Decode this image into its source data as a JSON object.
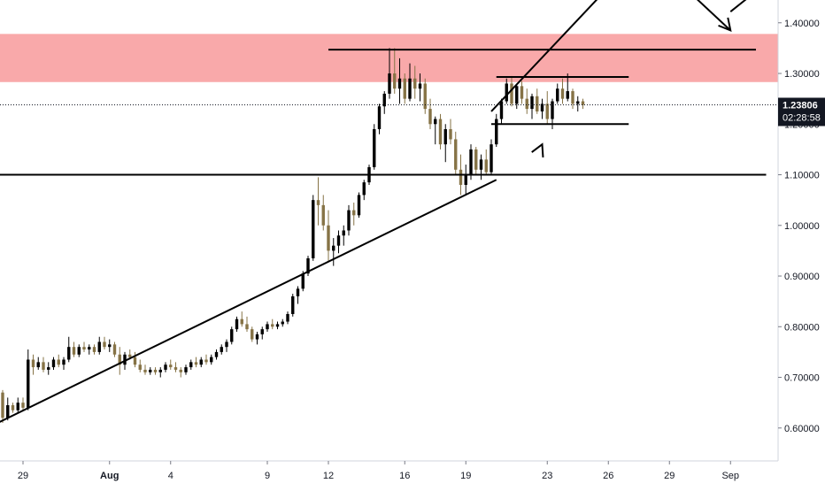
{
  "chart_data": {
    "type": "candlestick",
    "y_axis": {
      "ticks": [
        "1.40000",
        "1.30000",
        "1.20000",
        "1.10000",
        "1.00000",
        "0.90000",
        "0.80000",
        "0.70000",
        "0.60000"
      ],
      "tick_values": [
        1.4,
        1.3,
        1.2,
        1.1,
        1.0,
        0.9,
        0.8,
        0.7,
        0.6
      ],
      "ylim": [
        0.535,
        1.445
      ],
      "position": "right"
    },
    "x_axis": {
      "ticks": [
        "29",
        "Aug",
        "4",
        "9",
        "12",
        "16",
        "19",
        "23",
        "26",
        "29",
        "Sep"
      ],
      "tick_bold": [
        false,
        true,
        false,
        false,
        false,
        false,
        false,
        false,
        false,
        false,
        false
      ],
      "tick_bar_index": [
        4,
        21,
        33,
        52,
        64,
        79,
        91,
        107,
        119,
        131,
        143
      ]
    },
    "last_price": {
      "value": "1.23806",
      "numeric": 1.23806,
      "countdown": "02:28:58",
      "color": "#131722"
    },
    "colors": {
      "up": "#000000",
      "down": "#867346",
      "zone": "#f9a9aa",
      "line": "#000000"
    },
    "resistance_zone": {
      "from": 1.283,
      "to": 1.378
    },
    "horizontal_lines": [
      {
        "y": 1.1,
        "bar_from": -1,
        "bar_to": 150
      },
      {
        "y": 1.347,
        "bar_from": 64,
        "bar_to": 148
      },
      {
        "y": 1.293,
        "bar_from": 97,
        "bar_to": 123
      },
      {
        "y": 1.2,
        "bar_from": 96,
        "bar_to": 123
      }
    ],
    "trendlines": [
      {
        "from": [
          -1,
          0.61
        ],
        "to": [
          97,
          1.09
        ]
      },
      {
        "from": [
          96,
          1.225
        ],
        "to": [
          119,
          1.47
        ]
      },
      {
        "from": [
          135,
          1.46
        ],
        "to": [
          143,
          1.385
        ]
      },
      {
        "from": [
          143,
          1.422
        ],
        "to": [
          149,
          1.47
        ]
      }
    ],
    "arrowheads": [
      {
        "tip": [
          106,
          1.16
        ],
        "dir": [
          1,
          0.022
        ]
      },
      {
        "tip": [
          143,
          1.385
        ],
        "dir": [
          1,
          -0.012
        ]
      }
    ],
    "candles": [
      [
        0.67,
        0.675,
        0.61,
        0.62
      ],
      [
        0.62,
        0.66,
        0.615,
        0.645
      ],
      [
        0.645,
        0.65,
        0.63,
        0.635
      ],
      [
        0.635,
        0.66,
        0.63,
        0.65
      ],
      [
        0.65,
        0.66,
        0.635,
        0.64
      ],
      [
        0.64,
        0.755,
        0.635,
        0.735
      ],
      [
        0.735,
        0.745,
        0.705,
        0.72
      ],
      [
        0.72,
        0.74,
        0.715,
        0.73
      ],
      [
        0.73,
        0.74,
        0.71,
        0.715
      ],
      [
        0.715,
        0.73,
        0.705,
        0.72
      ],
      [
        0.72,
        0.74,
        0.715,
        0.735
      ],
      [
        0.735,
        0.745,
        0.72,
        0.725
      ],
      [
        0.725,
        0.74,
        0.715,
        0.735
      ],
      [
        0.735,
        0.78,
        0.73,
        0.76
      ],
      [
        0.76,
        0.77,
        0.74,
        0.745
      ],
      [
        0.745,
        0.765,
        0.74,
        0.76
      ],
      [
        0.76,
        0.77,
        0.75,
        0.755
      ],
      [
        0.755,
        0.765,
        0.745,
        0.76
      ],
      [
        0.76,
        0.765,
        0.745,
        0.75
      ],
      [
        0.75,
        0.78,
        0.745,
        0.77
      ],
      [
        0.77,
        0.78,
        0.755,
        0.76
      ],
      [
        0.76,
        0.775,
        0.75,
        0.765
      ],
      [
        0.765,
        0.77,
        0.74,
        0.745
      ],
      [
        0.745,
        0.76,
        0.705,
        0.725
      ],
      [
        0.725,
        0.75,
        0.715,
        0.745
      ],
      [
        0.745,
        0.755,
        0.735,
        0.74
      ],
      [
        0.74,
        0.75,
        0.72,
        0.725
      ],
      [
        0.725,
        0.735,
        0.71,
        0.715
      ],
      [
        0.715,
        0.725,
        0.705,
        0.71
      ],
      [
        0.71,
        0.72,
        0.705,
        0.715
      ],
      [
        0.715,
        0.72,
        0.705,
        0.71
      ],
      [
        0.71,
        0.72,
        0.7,
        0.715
      ],
      [
        0.715,
        0.73,
        0.71,
        0.725
      ],
      [
        0.725,
        0.735,
        0.715,
        0.72
      ],
      [
        0.72,
        0.73,
        0.71,
        0.715
      ],
      [
        0.715,
        0.72,
        0.7,
        0.71
      ],
      [
        0.71,
        0.725,
        0.705,
        0.72
      ],
      [
        0.72,
        0.735,
        0.715,
        0.73
      ],
      [
        0.73,
        0.74,
        0.72,
        0.725
      ],
      [
        0.725,
        0.74,
        0.72,
        0.735
      ],
      [
        0.735,
        0.745,
        0.725,
        0.73
      ],
      [
        0.73,
        0.745,
        0.725,
        0.74
      ],
      [
        0.74,
        0.755,
        0.735,
        0.75
      ],
      [
        0.75,
        0.765,
        0.745,
        0.76
      ],
      [
        0.76,
        0.775,
        0.75,
        0.77
      ],
      [
        0.77,
        0.8,
        0.765,
        0.795
      ],
      [
        0.795,
        0.82,
        0.79,
        0.815
      ],
      [
        0.815,
        0.83,
        0.8,
        0.805
      ],
      [
        0.805,
        0.82,
        0.79,
        0.795
      ],
      [
        0.795,
        0.8,
        0.77,
        0.775
      ],
      [
        0.775,
        0.79,
        0.765,
        0.785
      ],
      [
        0.785,
        0.8,
        0.775,
        0.795
      ],
      [
        0.795,
        0.81,
        0.79,
        0.805
      ],
      [
        0.805,
        0.815,
        0.795,
        0.8
      ],
      [
        0.8,
        0.81,
        0.795,
        0.805
      ],
      [
        0.805,
        0.815,
        0.8,
        0.81
      ],
      [
        0.81,
        0.83,
        0.805,
        0.825
      ],
      [
        0.825,
        0.865,
        0.82,
        0.86
      ],
      [
        0.86,
        0.88,
        0.845,
        0.875
      ],
      [
        0.875,
        0.91,
        0.87,
        0.905
      ],
      [
        0.905,
        0.94,
        0.9,
        0.935
      ],
      [
        0.935,
        1.06,
        0.93,
        1.05
      ],
      [
        1.05,
        1.095,
        1.0,
        1.04
      ],
      [
        1.04,
        1.06,
        0.99,
        1.0
      ],
      [
        1.0,
        1.03,
        0.93,
        0.95
      ],
      [
        0.95,
        0.975,
        0.92,
        0.96
      ],
      [
        0.96,
        0.99,
        0.945,
        0.98
      ],
      [
        0.98,
        1.0,
        0.96,
        0.99
      ],
      [
        0.99,
        1.04,
        0.98,
        1.03
      ],
      [
        1.03,
        1.045,
        1.0,
        1.02
      ],
      [
        1.02,
        1.065,
        1.015,
        1.06
      ],
      [
        1.06,
        1.09,
        1.05,
        1.085
      ],
      [
        1.085,
        1.12,
        1.08,
        1.115
      ],
      [
        1.115,
        1.2,
        1.11,
        1.19
      ],
      [
        1.19,
        1.24,
        1.18,
        1.235
      ],
      [
        1.235,
        1.265,
        1.22,
        1.26
      ],
      [
        1.26,
        1.35,
        1.25,
        1.3
      ],
      [
        1.3,
        1.35,
        1.26,
        1.27
      ],
      [
        1.27,
        1.33,
        1.24,
        1.29
      ],
      [
        1.29,
        1.3,
        1.24,
        1.25
      ],
      [
        1.25,
        1.32,
        1.245,
        1.29
      ],
      [
        1.29,
        1.315,
        1.25,
        1.27
      ],
      [
        1.27,
        1.3,
        1.245,
        1.28
      ],
      [
        1.28,
        1.29,
        1.22,
        1.23
      ],
      [
        1.23,
        1.25,
        1.19,
        1.2
      ],
      [
        1.2,
        1.215,
        1.16,
        1.21
      ],
      [
        1.21,
        1.22,
        1.15,
        1.16
      ],
      [
        1.16,
        1.2,
        1.125,
        1.19
      ],
      [
        1.19,
        1.21,
        1.16,
        1.17
      ],
      [
        1.17,
        1.185,
        1.1,
        1.11
      ],
      [
        1.11,
        1.14,
        1.06,
        1.08
      ],
      [
        1.08,
        1.12,
        1.06,
        1.1
      ],
      [
        1.1,
        1.16,
        1.09,
        1.15
      ],
      [
        1.15,
        1.155,
        1.1,
        1.11
      ],
      [
        1.11,
        1.14,
        1.09,
        1.13
      ],
      [
        1.13,
        1.15,
        1.1,
        1.105
      ],
      [
        1.105,
        1.17,
        1.1,
        1.16
      ],
      [
        1.16,
        1.22,
        1.155,
        1.21
      ],
      [
        1.21,
        1.25,
        1.2,
        1.245
      ],
      [
        1.245,
        1.29,
        1.24,
        1.28
      ],
      [
        1.28,
        1.295,
        1.235,
        1.24
      ],
      [
        1.24,
        1.28,
        1.23,
        1.275
      ],
      [
        1.275,
        1.285,
        1.24,
        1.25
      ],
      [
        1.25,
        1.27,
        1.22,
        1.23
      ],
      [
        1.23,
        1.26,
        1.21,
        1.255
      ],
      [
        1.255,
        1.27,
        1.22,
        1.225
      ],
      [
        1.225,
        1.25,
        1.21,
        1.24
      ],
      [
        1.24,
        1.265,
        1.2,
        1.21
      ],
      [
        1.21,
        1.25,
        1.19,
        1.245
      ],
      [
        1.245,
        1.28,
        1.24,
        1.27
      ],
      [
        1.27,
        1.29,
        1.24,
        1.25
      ],
      [
        1.25,
        1.3,
        1.245,
        1.265
      ],
      [
        1.265,
        1.27,
        1.23,
        1.24
      ],
      [
        1.24,
        1.255,
        1.225,
        1.245
      ],
      [
        1.245,
        1.25,
        1.23,
        1.238
      ]
    ]
  }
}
